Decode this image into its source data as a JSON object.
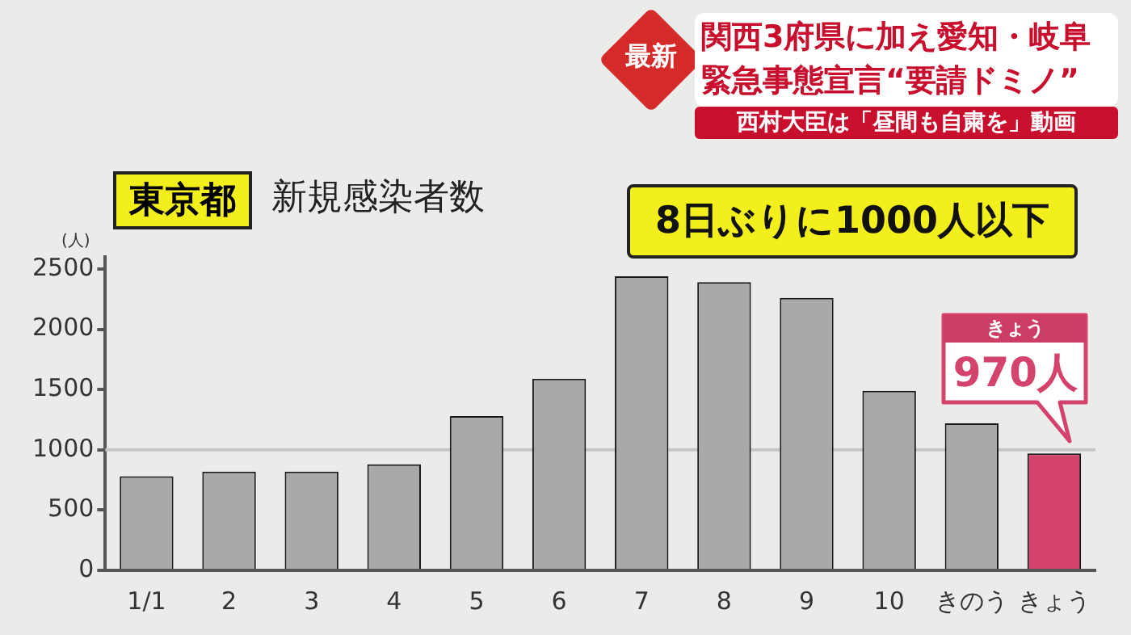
{
  "chart_data": {
    "type": "bar",
    "title": "東京都",
    "subtitle": "新規感染者数",
    "ylabel": "(人)",
    "categories": [
      "1/1",
      "2",
      "3",
      "4",
      "5",
      "6",
      "7",
      "8",
      "9",
      "10",
      "きのう",
      "きょう"
    ],
    "values": [
      780,
      820,
      820,
      880,
      1280,
      1590,
      2440,
      2390,
      2260,
      1490,
      1220,
      970
    ],
    "colors": [
      "#a9a9a9",
      "#a9a9a9",
      "#a9a9a9",
      "#a9a9a9",
      "#a9a9a9",
      "#a9a9a9",
      "#a9a9a9",
      "#a9a9a9",
      "#a9a9a9",
      "#a9a9a9",
      "#a9a9a9",
      "#d4436b"
    ],
    "value_labels": [
      null,
      null,
      null,
      null,
      null,
      null,
      null,
      null,
      null,
      null,
      null,
      "970人"
    ],
    "ylim": [
      0,
      2600
    ],
    "yticks": [
      0,
      500,
      1000,
      1500,
      2000,
      2500
    ],
    "ref_lines": [
      {
        "axis": "y",
        "value": 1000,
        "color": "#c6c6c6"
      }
    ],
    "annotations": [
      "最新",
      "関西3府県に加え愛知・岐阜",
      "緊急事態宣言“要請ドミノ”",
      "西村大臣は「昼間も自粛を」動画",
      "8日ぶりに1000人以下",
      "きょう"
    ]
  }
}
